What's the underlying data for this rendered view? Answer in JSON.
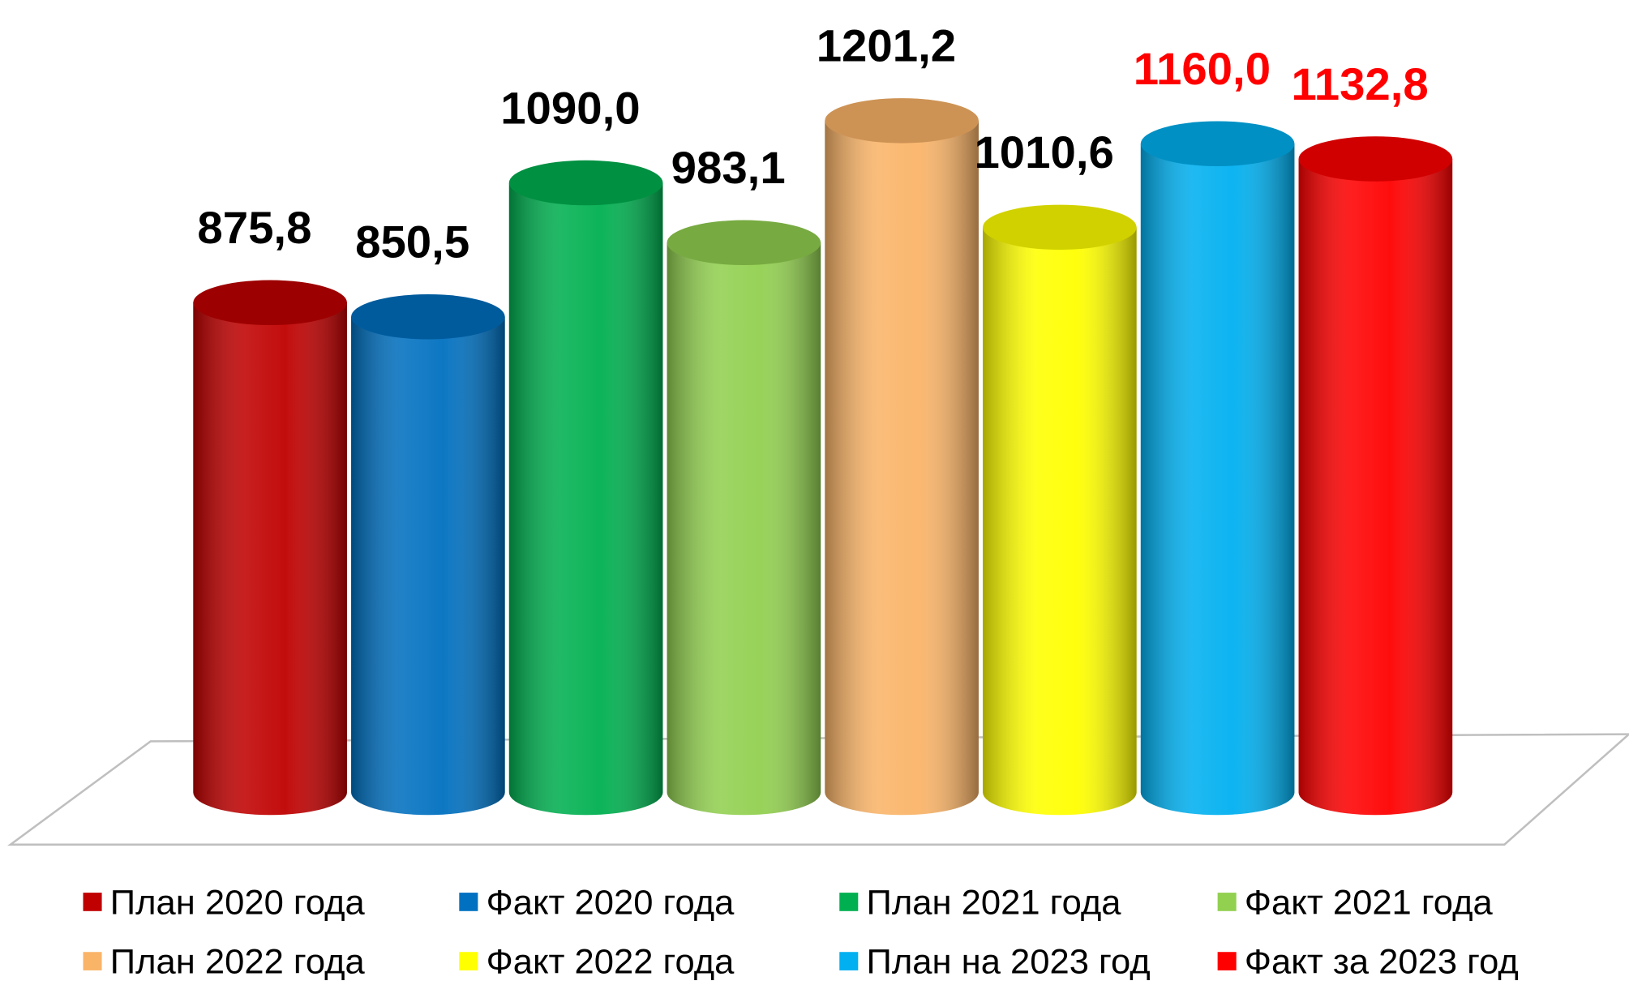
{
  "chart_data": {
    "type": "cylinder_bar",
    "series": [
      {
        "name": "План 2020 года",
        "color": "#c00000",
        "values": [
          875.8
        ],
        "value_labels": [
          "875,8"
        ],
        "label_color": "#000000"
      },
      {
        "name": "Факт 2020 года",
        "color": "#0070c0",
        "values": [
          850.5
        ],
        "value_labels": [
          "850,5"
        ],
        "label_color": "#000000"
      },
      {
        "name": "План 2021 года",
        "color": "#00b050",
        "values": [
          1090.0
        ],
        "value_labels": [
          "1090,0"
        ],
        "label_color": "#000000"
      },
      {
        "name": "Факт 2021 года",
        "color": "#92d050",
        "values": [
          983.1
        ],
        "value_labels": [
          "983,1"
        ],
        "label_color": "#000000"
      },
      {
        "name": "План 2022 года",
        "color": "#fab468",
        "values": [
          1201.2
        ],
        "value_labels": [
          "1201,2"
        ],
        "label_color": "#000000"
      },
      {
        "name": "Факт 2022 года",
        "color": "#ffff00",
        "values": [
          1010.6
        ],
        "value_labels": [
          "1010,6"
        ],
        "label_color": "#000000"
      },
      {
        "name": "План на 2023 год",
        "color": "#00b0f0",
        "values": [
          1160.0
        ],
        "value_labels": [
          "1160,0"
        ],
        "label_color": "#ff0000"
      },
      {
        "name": "Факт за 2023 год",
        "color": "#ff0000",
        "values": [
          1132.8
        ],
        "value_labels": [
          "1132,8"
        ],
        "label_color": "#ff0000"
      }
    ],
    "legend": "bottom"
  }
}
